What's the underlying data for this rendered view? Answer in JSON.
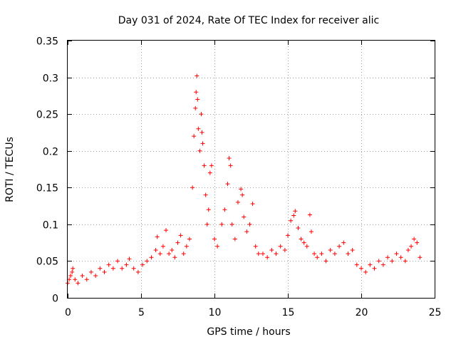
{
  "chart_data": {
    "type": "scatter",
    "title": "Day 031 of 2024, Rate Of TEC Index for receiver alic",
    "xlabel": "GPS time / hours",
    "ylabel": "ROTI / TECUs",
    "xlim": [
      0,
      25
    ],
    "ylim": [
      0,
      0.35
    ],
    "xticks": [
      0,
      5,
      10,
      15,
      20,
      25
    ],
    "xtick_labels": [
      "0",
      "5",
      "10",
      "15",
      "20",
      "25"
    ],
    "yticks": [
      0,
      0.05,
      0.1,
      0.15,
      0.2,
      0.25,
      0.3,
      0.35
    ],
    "ytick_labels": [
      "0",
      "0.05",
      "0.1",
      "0.15",
      "0.2",
      "0.25",
      "0.3",
      "0.35"
    ],
    "grid": true,
    "marker": "+",
    "color": "#ff0000",
    "series": [
      {
        "name": "ROTI",
        "x": [
          0.0,
          0.1,
          0.2,
          0.3,
          0.35,
          0.5,
          0.7,
          1.0,
          1.3,
          1.6,
          1.9,
          2.2,
          2.5,
          2.8,
          3.1,
          3.4,
          3.7,
          4.0,
          4.2,
          4.5,
          4.8,
          5.1,
          5.4,
          5.7,
          6.0,
          6.1,
          6.3,
          6.5,
          6.7,
          6.9,
          7.1,
          7.3,
          7.5,
          7.7,
          7.9,
          8.1,
          8.3,
          8.5,
          8.6,
          8.7,
          8.75,
          8.8,
          8.85,
          8.9,
          9.0,
          9.1,
          9.15,
          9.2,
          9.3,
          9.4,
          9.5,
          9.6,
          9.7,
          9.8,
          10.0,
          10.2,
          10.5,
          10.7,
          10.9,
          11.0,
          11.1,
          11.2,
          11.4,
          11.6,
          11.8,
          11.9,
          12.0,
          12.2,
          12.4,
          12.6,
          12.8,
          13.0,
          13.3,
          13.6,
          13.9,
          14.2,
          14.5,
          14.8,
          15.0,
          15.2,
          15.4,
          15.5,
          15.7,
          15.9,
          16.1,
          16.3,
          16.5,
          16.6,
          16.8,
          17.0,
          17.3,
          17.6,
          17.9,
          18.2,
          18.5,
          18.8,
          19.1,
          19.4,
          19.7,
          20.0,
          20.3,
          20.6,
          20.9,
          21.2,
          21.5,
          21.8,
          22.1,
          22.4,
          22.7,
          23.0,
          23.2,
          23.4,
          23.6,
          23.8,
          24.0
        ],
        "y": [
          0.02,
          0.025,
          0.03,
          0.035,
          0.04,
          0.025,
          0.02,
          0.03,
          0.025,
          0.035,
          0.03,
          0.04,
          0.035,
          0.045,
          0.04,
          0.05,
          0.04,
          0.045,
          0.053,
          0.04,
          0.035,
          0.045,
          0.05,
          0.055,
          0.065,
          0.083,
          0.06,
          0.07,
          0.092,
          0.06,
          0.065,
          0.055,
          0.075,
          0.085,
          0.06,
          0.07,
          0.08,
          0.15,
          0.22,
          0.258,
          0.28,
          0.302,
          0.27,
          0.23,
          0.2,
          0.25,
          0.225,
          0.21,
          0.18,
          0.14,
          0.1,
          0.12,
          0.17,
          0.18,
          0.08,
          0.07,
          0.1,
          0.12,
          0.155,
          0.19,
          0.18,
          0.1,
          0.08,
          0.13,
          0.148,
          0.14,
          0.11,
          0.09,
          0.1,
          0.128,
          0.07,
          0.06,
          0.06,
          0.055,
          0.065,
          0.06,
          0.07,
          0.065,
          0.085,
          0.105,
          0.112,
          0.118,
          0.095,
          0.08,
          0.075,
          0.07,
          0.113,
          0.09,
          0.06,
          0.055,
          0.06,
          0.05,
          0.065,
          0.06,
          0.07,
          0.075,
          0.06,
          0.065,
          0.045,
          0.04,
          0.035,
          0.045,
          0.04,
          0.05,
          0.045,
          0.055,
          0.05,
          0.06,
          0.055,
          0.05,
          0.065,
          0.07,
          0.08,
          0.075,
          0.055
        ]
      }
    ]
  }
}
